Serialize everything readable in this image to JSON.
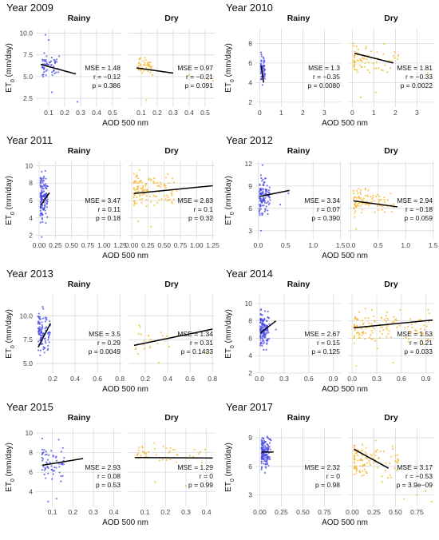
{
  "common": {
    "ylabel_main": "ET",
    "ylabel_sub": "0",
    "ylabel_unit": " (mm/day)",
    "xlabel": "AOD 500 nm",
    "mse_prefix": "MSE = ",
    "r_prefix": "r = ",
    "p_prefix": "p = ",
    "rainy_color": "#4a4ae6",
    "dry_color": "#f5b82e"
  },
  "chart_data": [
    {
      "type": "scatter",
      "title": "Year 2009",
      "ylim": [
        1.5,
        10.5
      ],
      "yticks": [
        "2.5",
        "5.0",
        "7.5",
        "10.0"
      ],
      "ytick_values": [
        2.5,
        5.0,
        7.5,
        10.0
      ],
      "panels": [
        {
          "name": "Rainy",
          "xlim": [
            0.02,
            0.56
          ],
          "xticks": [
            "0.1",
            "0.2",
            "0.3",
            "0.4",
            "0.5"
          ],
          "xtick_values": [
            0.1,
            0.2,
            0.3,
            0.4,
            0.5
          ],
          "cluster": {
            "x": [
              0.06,
              0.17
            ],
            "y": [
              4.5,
              8.0
            ],
            "n": 55
          },
          "outliers": [
            [
              0.08,
              9.8
            ],
            [
              0.1,
              9.2
            ],
            [
              0.28,
              2.1
            ],
            [
              0.12,
              3.2
            ]
          ],
          "fit": {
            "x0": 0.05,
            "y0": 6.4,
            "x1": 0.27,
            "y1": 5.3
          },
          "stats": {
            "mse": "1.48",
            "r": "−0.12",
            "p": "0.386"
          }
        },
        {
          "name": "Dry",
          "xlim": [
            0.02,
            0.56
          ],
          "xticks": [
            "0.1",
            "0.2",
            "0.3",
            "0.4",
            "0.5"
          ],
          "xtick_values": [
            0.1,
            0.2,
            0.3,
            0.4,
            0.5
          ],
          "cluster": {
            "x": [
              0.08,
              0.17
            ],
            "y": [
              4.5,
              7.8
            ],
            "n": 45
          },
          "outliers": [
            [
              0.13,
              2.3
            ],
            [
              0.4,
              5.2
            ],
            [
              0.52,
              4.7
            ],
            [
              0.55,
              4.5
            ]
          ],
          "fit": {
            "x0": 0.07,
            "y0": 6.0,
            "x1": 0.3,
            "y1": 5.4
          },
          "stats": {
            "mse": "0.97",
            "r": "−0.21",
            "p": "0.091"
          }
        }
      ]
    },
    {
      "type": "scatter",
      "title": "Year 2010",
      "ylim": [
        1.5,
        9.5
      ],
      "yticks": [
        "2",
        "4",
        "6",
        "8"
      ],
      "ytick_values": [
        2,
        4,
        6,
        8
      ],
      "panels": [
        {
          "name": "Rainy",
          "xlim": [
            -0.2,
            3.8
          ],
          "xticks": [
            "0",
            "1",
            "2",
            "3"
          ],
          "xtick_values": [
            0,
            1,
            2,
            3
          ],
          "cluster": {
            "x": [
              0.05,
              0.25
            ],
            "y": [
              3.3,
              7.4
            ],
            "n": 60
          },
          "outliers": [],
          "fit": {
            "x0": 0.07,
            "y0": 5.7,
            "x1": 0.18,
            "y1": 4.0
          },
          "stats": {
            "mse": "1.3",
            "r": "−0.35",
            "p": "0.0080"
          }
        },
        {
          "name": "Dry",
          "xlim": [
            -0.2,
            3.8
          ],
          "xticks": [
            "0",
            "1",
            "2",
            "3"
          ],
          "xtick_values": [
            0,
            1,
            2,
            3
          ],
          "cluster": {
            "x": [
              0.05,
              2.2
            ],
            "y": [
              4.0,
              8.6
            ],
            "n": 75
          },
          "outliers": [
            [
              3.5,
              5.0
            ],
            [
              0.4,
              2.5
            ],
            [
              1.1,
              3.0
            ]
          ],
          "fit": {
            "x0": 0.1,
            "y0": 7.0,
            "x1": 1.9,
            "y1": 6.0
          },
          "stats": {
            "mse": "1.81",
            "r": "−0.33",
            "p": "0.0022"
          }
        }
      ]
    },
    {
      "type": "scatter",
      "title": "Year 2011",
      "ylim": [
        1.5,
        10.5
      ],
      "yticks": [
        "2",
        "4",
        "6",
        "8",
        "10"
      ],
      "ytick_values": [
        2,
        4,
        6,
        8,
        10
      ],
      "panels": [
        {
          "name": "Rainy",
          "xlim": [
            -0.05,
            1.28
          ],
          "xticks": [
            "0.00",
            "0.25",
            "0.50",
            "0.75",
            "1.00",
            "1.25"
          ],
          "xtick_values": [
            0,
            0.25,
            0.5,
            0.75,
            1.0,
            1.25
          ],
          "cluster": {
            "x": [
              0.02,
              0.13
            ],
            "y": [
              3.0,
              10.0
            ],
            "n": 140
          },
          "outliers": [
            [
              0.04,
              1.8
            ]
          ],
          "fit": {
            "x0": 0.03,
            "y0": 5.5,
            "x1": 0.16,
            "y1": 6.9
          },
          "stats": {
            "mse": "3.47",
            "r": "0.11",
            "p": "0.18"
          }
        },
        {
          "name": "Dry",
          "xlim": [
            -0.05,
            1.28
          ],
          "xticks": [
            "0.00",
            "0.25",
            "0.50",
            "0.75",
            "1.00",
            "1.25"
          ],
          "xtick_values": [
            0,
            0.25,
            0.5,
            0.75,
            1.0,
            1.25
          ],
          "cluster": {
            "x": [
              0.03,
              0.7
            ],
            "y": [
              4.5,
              10.0
            ],
            "n": 120
          },
          "outliers": [
            [
              0.1,
              3.6
            ],
            [
              0.3,
              3.0
            ]
          ],
          "fit": {
            "x0": 0.03,
            "y0": 6.8,
            "x1": 1.25,
            "y1": 7.7
          },
          "stats": {
            "mse": "2.83",
            "r": "0.1",
            "p": "0.32"
          }
        }
      ]
    },
    {
      "type": "scatter",
      "title": "Year 2012",
      "ylim": [
        1.8,
        12.3
      ],
      "yticks": [
        "3",
        "6",
        "9",
        "12"
      ],
      "ytick_values": [
        3,
        6,
        9,
        12
      ],
      "panels": [
        {
          "name": "Rainy",
          "xlim": [
            -0.05,
            1.52
          ],
          "xticks": [
            "0.0",
            "0.5",
            "1.0",
            "1.5"
          ],
          "xtick_values": [
            0,
            0.5,
            1.0,
            1.5
          ],
          "cluster": {
            "x": [
              0.02,
              0.22
            ],
            "y": [
              4.0,
              11.0
            ],
            "n": 120
          },
          "outliers": [
            [
              0.05,
              3.0
            ],
            [
              0.4,
              6.5
            ],
            [
              0.55,
              8.0
            ],
            [
              0.08,
              11.8
            ]
          ],
          "fit": {
            "x0": 0.03,
            "y0": 7.6,
            "x1": 0.57,
            "y1": 8.4
          },
          "stats": {
            "mse": "3.34",
            "r": "0.07",
            "p": "0.390"
          }
        },
        {
          "name": "Dry",
          "xlim": [
            -0.05,
            1.52
          ],
          "xticks": [
            "0.0",
            "0.5",
            "1.0",
            "1.5"
          ],
          "xtick_values": [
            0,
            0.5,
            1.0,
            1.5
          ],
          "cluster": {
            "x": [
              0.05,
              0.8
            ],
            "y": [
              4.5,
              9.5
            ],
            "n": 95
          },
          "outliers": [
            [
              0.1,
              3.2
            ],
            [
              1.45,
              5.9
            ]
          ],
          "fit": {
            "x0": 0.05,
            "y0": 7.0,
            "x1": 0.85,
            "y1": 6.2
          },
          "stats": {
            "mse": "2.94",
            "r": "−0.18",
            "p": "0.059"
          }
        }
      ]
    },
    {
      "type": "scatter",
      "title": "Year 2013",
      "ylim": [
        4.0,
        12.2
      ],
      "yticks": [
        "5.0",
        "7.5",
        "10.0"
      ],
      "ytick_values": [
        5.0,
        7.5,
        10.0
      ],
      "panels": [
        {
          "name": "Rainy",
          "xlim": [
            0.05,
            0.82
          ],
          "xticks": [
            "0.2",
            "0.4",
            "0.6",
            "0.8"
          ],
          "xtick_values": [
            0.2,
            0.4,
            0.6,
            0.8
          ],
          "cluster": {
            "x": [
              0.07,
              0.18
            ],
            "y": [
              5.0,
              11.5
            ],
            "n": 110
          },
          "outliers": [],
          "fit": {
            "x0": 0.07,
            "y0": 6.7,
            "x1": 0.18,
            "y1": 9.2
          },
          "stats": {
            "mse": "3.5",
            "r": "0.29",
            "p": "0.0049"
          }
        },
        {
          "name": "Dry",
          "xlim": [
            0.05,
            0.82
          ],
          "xticks": [
            "0.2",
            "0.4",
            "0.6",
            "0.8"
          ],
          "xtick_values": [
            0.2,
            0.4,
            0.6,
            0.8
          ],
          "cluster": {
            "x": [
              0.1,
              0.5
            ],
            "y": [
              5.5,
              10.0
            ],
            "n": 24
          },
          "outliers": [
            [
              0.75,
              6.2
            ],
            [
              0.32,
              5.1
            ]
          ],
          "fit": {
            "x0": 0.1,
            "y0": 6.9,
            "x1": 0.8,
            "y1": 8.6
          },
          "stats": {
            "mse": "1.34",
            "r": "0.31",
            "p": "0.1433"
          }
        }
      ]
    },
    {
      "type": "scatter",
      "title": "Year 2014",
      "ylim": [
        2.0,
        11.0
      ],
      "yticks": [
        "2",
        "4",
        "6",
        "8",
        "10"
      ],
      "ytick_values": [
        2,
        4,
        6,
        8,
        10
      ],
      "panels": [
        {
          "name": "Rainy",
          "xlim": [
            -0.05,
            1.0
          ],
          "xticks": [
            "0.0",
            "0.3",
            "0.6",
            "0.9"
          ],
          "xtick_values": [
            0,
            0.3,
            0.6,
            0.9
          ],
          "cluster": {
            "x": [
              0.01,
              0.12
            ],
            "y": [
              4.0,
              10.0
            ],
            "n": 140
          },
          "outliers": [
            [
              0.2,
              7.0
            ]
          ],
          "fit": {
            "x0": 0.01,
            "y0": 6.6,
            "x1": 0.2,
            "y1": 8.0
          },
          "stats": {
            "mse": "2.67",
            "r": "0.15",
            "p": "0.125"
          }
        },
        {
          "name": "Dry",
          "xlim": [
            -0.05,
            1.0
          ],
          "xticks": [
            "0.0",
            "0.3",
            "0.6",
            "0.9"
          ],
          "xtick_values": [
            0,
            0.3,
            0.6,
            0.9
          ],
          "cluster": {
            "x": [
              0.02,
              0.95
            ],
            "y": [
              4.5,
              10.0
            ],
            "n": 130
          },
          "outliers": [
            [
              0.05,
              2.8
            ],
            [
              0.5,
              3.2
            ]
          ],
          "fit": {
            "x0": 0.02,
            "y0": 7.2,
            "x1": 0.98,
            "y1": 8.1
          },
          "stats": {
            "mse": "1.53",
            "r": "0.21",
            "p": "0.033"
          }
        }
      ]
    },
    {
      "type": "scatter",
      "title": "Year 2015",
      "ylim": [
        2.5,
        10.5
      ],
      "yticks": [
        "4",
        "6",
        "8",
        "10"
      ],
      "ytick_values": [
        4,
        6,
        8,
        10
      ],
      "panels": [
        {
          "name": "Rainy",
          "xlim": [
            0.02,
            0.44
          ],
          "xticks": [
            "0.1",
            "0.2",
            "0.3",
            "0.4"
          ],
          "xtick_values": [
            0.1,
            0.2,
            0.3,
            0.4
          ],
          "cluster": {
            "x": [
              0.05,
              0.16
            ],
            "y": [
              4.0,
              10.0
            ],
            "n": 60
          },
          "outliers": [
            [
              0.08,
              3.0
            ],
            [
              0.12,
              3.3
            ]
          ],
          "fit": {
            "x0": 0.05,
            "y0": 6.7,
            "x1": 0.25,
            "y1": 7.4
          },
          "stats": {
            "mse": "2.93",
            "r": "0.08",
            "p": "0.53"
          }
        },
        {
          "name": "Dry",
          "xlim": [
            0.02,
            0.44
          ],
          "xticks": [
            "0.1",
            "0.2",
            "0.3",
            "0.4"
          ],
          "xtick_values": [
            0.1,
            0.2,
            0.3,
            0.4
          ],
          "cluster": {
            "x": [
              0.06,
              0.4
            ],
            "y": [
              6.5,
              9.5
            ],
            "n": 40
          },
          "outliers": [
            [
              0.15,
              5.0
            ],
            [
              0.3,
              4.6
            ]
          ],
          "fit": {
            "x0": 0.05,
            "y0": 7.5,
            "x1": 0.43,
            "y1": 7.45
          },
          "stats": {
            "mse": "1.29",
            "r": "0",
            "p": "0.99"
          }
        }
      ]
    },
    {
      "type": "scatter",
      "title": "Year 2017",
      "ylim": [
        1.8,
        10.0
      ],
      "yticks": [
        "3",
        "6",
        "9"
      ],
      "ytick_values": [
        3,
        6,
        9
      ],
      "panels": [
        {
          "name": "Rainy",
          "xlim": [
            -0.05,
            0.95
          ],
          "xticks": [
            "0.00",
            "0.25",
            "0.50",
            "0.75"
          ],
          "xtick_values": [
            0,
            0.25,
            0.5,
            0.75
          ],
          "cluster": {
            "x": [
              0.02,
              0.13
            ],
            "y": [
              5.0,
              9.8
            ],
            "n": 140
          },
          "outliers": [],
          "fit": {
            "x0": 0.02,
            "y0": 7.5,
            "x1": 0.16,
            "y1": 7.5
          },
          "stats": {
            "mse": "2.32",
            "r": "0",
            "p": "0.98"
          }
        },
        {
          "name": "Dry",
          "xlim": [
            -0.05,
            0.95
          ],
          "xticks": [
            "0.00",
            "0.25",
            "0.50",
            "0.75"
          ],
          "xtick_values": [
            0,
            0.25,
            0.5,
            0.75
          ],
          "cluster": {
            "x": [
              0.02,
              0.55
            ],
            "y": [
              4.0,
              9.0
            ],
            "n": 110
          },
          "outliers": [
            [
              0.6,
              2.6
            ],
            [
              0.75,
              3.0
            ],
            [
              0.92,
              2.3
            ],
            [
              0.85,
              3.4
            ]
          ],
          "fit": {
            "x0": 0.02,
            "y0": 7.8,
            "x1": 0.42,
            "y1": 5.8
          },
          "stats": {
            "mse": "3.17",
            "r": "−0.53",
            "p": "3.9e−09"
          }
        }
      ]
    }
  ]
}
